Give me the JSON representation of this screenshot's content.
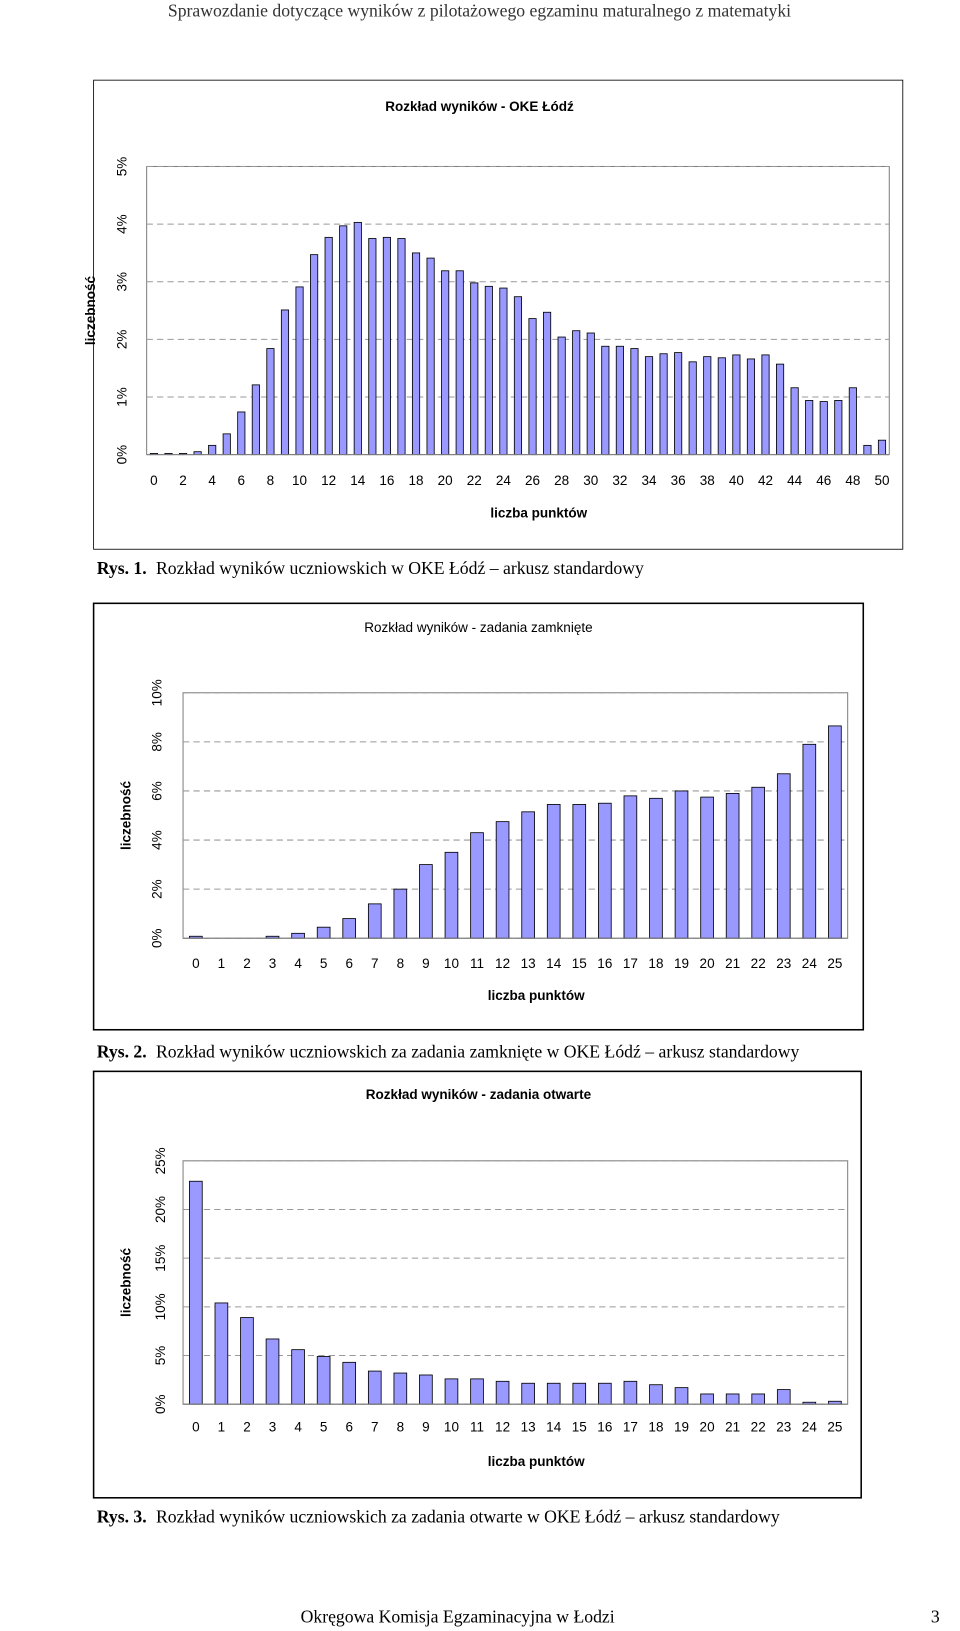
{
  "header": "Sprawozdanie dotyczące wyników z pilotażowego egzaminu maturalnego z matematyki",
  "chart_data": [
    {
      "type": "bar",
      "title": "Rozkład wyników - OKE Łódź",
      "xlabel": "liczba punktów",
      "ylabel": "liczebność",
      "categories": [
        "0",
        null,
        "2",
        null,
        "4",
        null,
        "6",
        null,
        "8",
        null,
        "10",
        null,
        "12",
        null,
        "14",
        null,
        "16",
        null,
        "18",
        null,
        "20",
        null,
        "22",
        null,
        "24",
        null,
        "26",
        null,
        "28",
        null,
        "30",
        null,
        "32",
        null,
        "34",
        null,
        "36",
        null,
        "38",
        null,
        "40",
        null,
        "42",
        null,
        "44",
        null,
        "46",
        null,
        "48",
        null,
        "50"
      ],
      "values": [
        0.02,
        0.02,
        0.02,
        0.05,
        0.16,
        0.36,
        0.74,
        1.21,
        1.84,
        2.51,
        2.91,
        3.47,
        3.77,
        3.97,
        4.03,
        3.75,
        3.77,
        3.75,
        3.5,
        3.41,
        3.19,
        3.19,
        2.98,
        2.92,
        2.89,
        2.74,
        2.36,
        2.47,
        2.04,
        2.15,
        2.11,
        1.88,
        1.88,
        1.84,
        1.7,
        1.75,
        1.77,
        1.61,
        1.7,
        1.68,
        1.73,
        1.66,
        1.73,
        1.57,
        1.16,
        0.94,
        0.92,
        0.94,
        1.16,
        0.16,
        0.25
      ],
      "color": "#9999ff",
      "ylim": [
        0,
        5
      ],
      "yticks": [
        {
          "value": 0,
          "label": "0%"
        },
        {
          "value": 1,
          "label": "1%"
        },
        {
          "value": 2,
          "label": "2%"
        },
        {
          "value": 3,
          "label": "3%"
        },
        {
          "value": 4,
          "label": "4%"
        },
        {
          "value": 5,
          "label": "5%"
        }
      ],
      "grid": true
    },
    {
      "type": "bar",
      "title": "Rozkład wyników - zadania zamknięte",
      "xlabel": "liczba punktów",
      "ylabel": "liczebność",
      "categories": [
        "0",
        "1",
        "2",
        "3",
        "4",
        "5",
        "6",
        "7",
        "8",
        "9",
        "10",
        "11",
        "12",
        "13",
        "14",
        "15",
        "16",
        "17",
        "18",
        "19",
        "20",
        "21",
        "22",
        "23",
        "24",
        "25"
      ],
      "values": [
        0.08,
        0,
        0,
        0.08,
        0.2,
        0.45,
        0.8,
        1.4,
        2.0,
        3.0,
        3.5,
        4.3,
        4.75,
        5.15,
        5.45,
        5.45,
        5.5,
        5.8,
        5.7,
        6.0,
        5.75,
        5.9,
        6.15,
        6.7,
        7.9,
        8.65
      ],
      "color": "#9999ff",
      "ylim": [
        0,
        10
      ],
      "yticks": [
        {
          "value": 0,
          "label": "0%"
        },
        {
          "value": 2,
          "label": "2%"
        },
        {
          "value": 4,
          "label": "4%"
        },
        {
          "value": 6,
          "label": "6%"
        },
        {
          "value": 8,
          "label": "8%"
        },
        {
          "value": 10,
          "label": "10%"
        }
      ],
      "grid": true
    },
    {
      "type": "bar",
      "title": "Rozkład wyników - zadania otwarte",
      "xlabel": "liczba punktów",
      "ylabel": "liczebność",
      "categories": [
        "0",
        "1",
        "2",
        "3",
        "4",
        "5",
        "6",
        "7",
        "8",
        "9",
        "10",
        "11",
        "12",
        "13",
        "14",
        "15",
        "16",
        "17",
        "18",
        "19",
        "20",
        "21",
        "22",
        "23",
        "24",
        "25"
      ],
      "values": [
        22.9,
        10.4,
        8.9,
        6.7,
        5.6,
        4.9,
        4.3,
        3.4,
        3.2,
        3.0,
        2.6,
        2.6,
        2.35,
        2.15,
        2.15,
        2.15,
        2.15,
        2.35,
        2.0,
        1.7,
        1.05,
        1.05,
        1.05,
        1.5,
        0.2,
        0.3
      ],
      "color": "#9999ff",
      "ylim": [
        0,
        25
      ],
      "yticks": [
        {
          "value": 0,
          "label": "0%"
        },
        {
          "value": 5,
          "label": "5%"
        },
        {
          "value": 10,
          "label": "10%"
        },
        {
          "value": 15,
          "label": "15%"
        },
        {
          "value": 20,
          "label": "20%"
        },
        {
          "value": 25,
          "label": "25%"
        }
      ],
      "grid": true
    }
  ],
  "captions": [
    {
      "label": "Rys. 1.",
      "text": "Rozkład wyników uczniowskich w OKE Łódź – arkusz standardowy"
    },
    {
      "label": "Rys. 2.",
      "text": "Rozkład wyników uczniowskich za zadania zamknięte w OKE Łódź – arkusz standardowy"
    },
    {
      "label": "Rys. 3.",
      "text": "Rozkład wyników uczniowskich za zadania otwarte w OKE Łódź – arkusz standardowy"
    }
  ],
  "footer": {
    "text": "Okręgowa Komisja Egzaminacyjna w Łodzi",
    "page": "3"
  }
}
